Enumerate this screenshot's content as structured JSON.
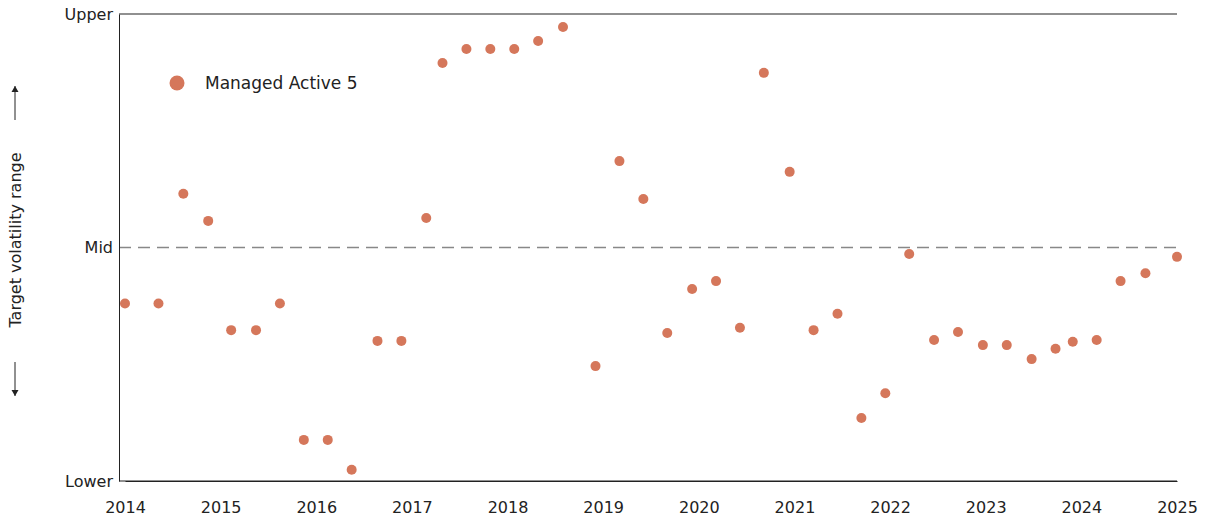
{
  "chart_data": {
    "type": "scatter",
    "ylabel": "Target volatility range",
    "series": [
      {
        "name": "Managed Active 5",
        "color": "#d5775b",
        "marker": "circle",
        "x": [
          2014.0,
          2014.35,
          2014.61,
          2014.87,
          2015.11,
          2015.37,
          2015.62,
          2015.87,
          2016.12,
          2016.37,
          2016.64,
          2016.89,
          2017.15,
          2017.32,
          2017.57,
          2017.82,
          2018.07,
          2018.32,
          2018.58,
          2018.92,
          2019.17,
          2019.42,
          2019.67,
          2019.93,
          2020.18,
          2020.43,
          2020.68,
          2020.95,
          2021.2,
          2021.45,
          2021.7,
          2021.95,
          2022.2,
          2022.46,
          2022.71,
          2022.97,
          2023.22,
          2023.48,
          2023.73,
          2023.91,
          2024.16,
          2024.41,
          2024.67,
          2025.0
        ],
        "values": [
          38,
          38,
          61.5,
          55.7,
          32.3,
          32.3,
          38,
          8.8,
          8.8,
          2.4,
          30,
          30,
          56.3,
          89.5,
          92.5,
          92.5,
          92.5,
          94.2,
          97.2,
          24.6,
          68.5,
          60.4,
          31.7,
          41.1,
          42.8,
          32.8,
          87.4,
          66.2,
          32.3,
          35.8,
          13.5,
          18.8,
          48.6,
          30.2,
          31.9,
          29.1,
          29.1,
          26.1,
          28.3,
          29.8,
          30.2,
          42.8,
          44.5,
          48
        ]
      }
    ],
    "xlim": [
      2014,
      2025
    ],
    "xticks": [
      2014,
      2015,
      2016,
      2017,
      2018,
      2019,
      2020,
      2021,
      2022,
      2023,
      2024,
      2025
    ],
    "ylim": [
      0,
      100
    ],
    "yticks": [
      {
        "value": 0,
        "label": "Lower"
      },
      {
        "value": 50,
        "label": "Mid"
      },
      {
        "value": 100,
        "label": "Upper"
      }
    ],
    "grid": true,
    "legend": "upper left"
  }
}
